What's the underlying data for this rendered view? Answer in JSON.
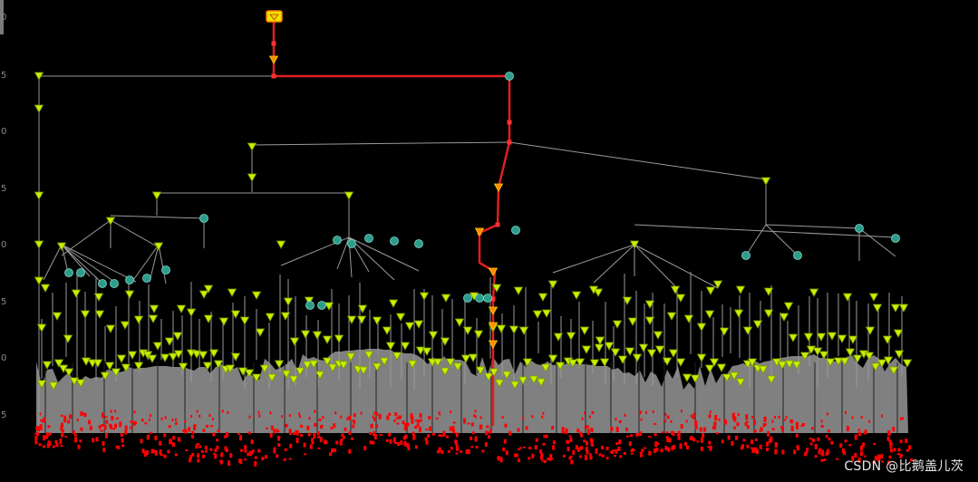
{
  "axis": {
    "tick_labels": [
      "0",
      "5",
      "0",
      "5",
      "0",
      "5",
      "0",
      "5"
    ]
  },
  "watermark": "CSDN @比鹅盖儿茨",
  "colors": {
    "background": "#000000",
    "edge": "#9a9a9a",
    "path": "#e02020",
    "leaf_marker": "#c8f000",
    "branch_marker": "#2e9c8c",
    "root_marker": "#f2e300",
    "fill": "#808080",
    "samples": "#ff0000"
  },
  "icons": {
    "leaf": "triangle-down-marker",
    "branch": "circle-marker",
    "root": "root-marker"
  }
}
